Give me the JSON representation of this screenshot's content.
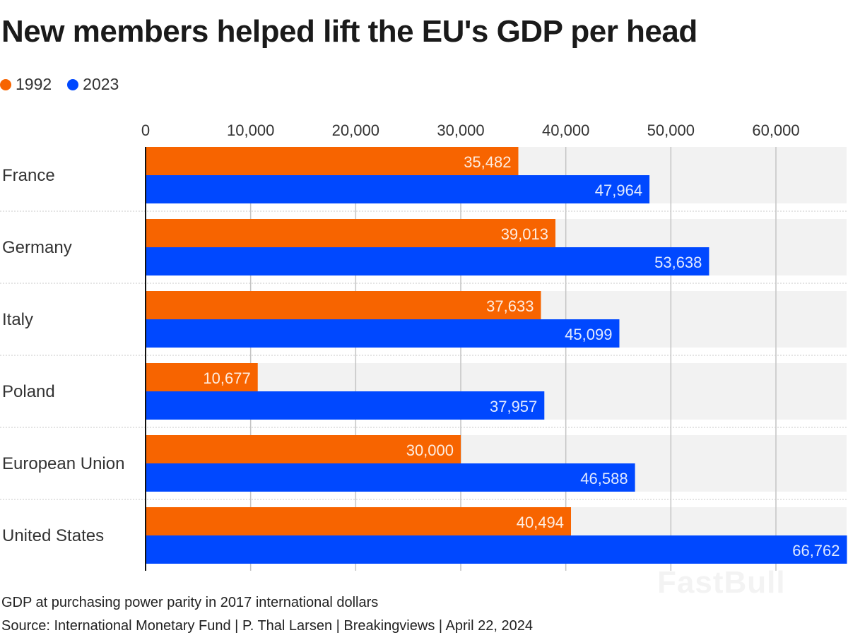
{
  "title": "New members helped lift the EU's GDP per head",
  "legend": [
    {
      "label": "1992",
      "color": "#f76400"
    },
    {
      "label": "2023",
      "color": "#0048ff"
    }
  ],
  "chart_data": {
    "type": "bar",
    "orientation": "horizontal",
    "title": "New members helped lift the EU's GDP per head",
    "categories": [
      "France",
      "Germany",
      "Italy",
      "Poland",
      "European Union",
      "United States"
    ],
    "series": [
      {
        "name": "1992",
        "color": "#f76400",
        "values": [
          35482,
          39013,
          37633,
          10677,
          30000,
          40494
        ],
        "labels": [
          "35,482",
          "39,013",
          "37,633",
          "10,677",
          "30,000",
          "40,494"
        ]
      },
      {
        "name": "2023",
        "color": "#0048ff",
        "values": [
          47964,
          53638,
          45099,
          37957,
          46588,
          66762
        ],
        "labels": [
          "47,964",
          "53,638",
          "45,099",
          "37,957",
          "46,588",
          "66,762"
        ]
      }
    ],
    "x_ticks": [
      0,
      10000,
      20000,
      30000,
      40000,
      50000,
      60000
    ],
    "x_tick_labels": [
      "0",
      "10,000",
      "20,000",
      "30,000",
      "40,000",
      "50,000",
      "60,000"
    ],
    "xlim": [
      0,
      66762
    ],
    "axis_position": "top",
    "grid": true,
    "legend_position": "top-left"
  },
  "footer": {
    "note": "GDP at purchasing power parity in 2017 international dollars",
    "source": "Source: International Monetary Fund | P. Thal Larsen | Breakingviews | April 22, 2024"
  },
  "watermark": "FastBull"
}
